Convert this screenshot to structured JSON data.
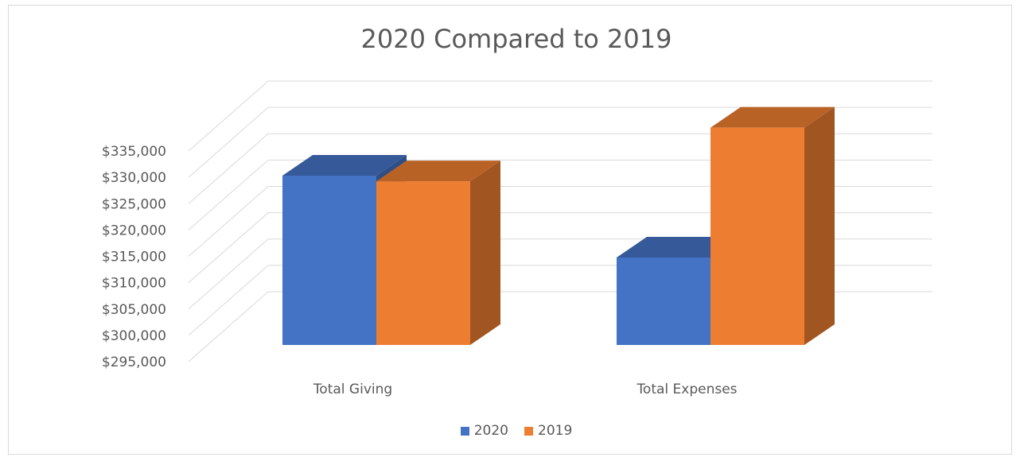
{
  "chart_data": {
    "type": "bar",
    "title": "2020 Compared to 2019",
    "categories": [
      "Total Giving",
      "Total Expenses"
    ],
    "series": [
      {
        "name": "2020",
        "values": [
          325000,
          310500
        ],
        "color": "#4472c4"
      },
      {
        "name": "2019",
        "values": [
          324000,
          333500
        ],
        "color": "#ed7d31"
      }
    ],
    "ylim": [
      295000,
      335000
    ],
    "yticks": [
      "$295,000",
      "$300,000",
      "$305,000",
      "$310,000",
      "$315,000",
      "$320,000",
      "$325,000",
      "$330,000",
      "$335,000"
    ],
    "grid": true,
    "legend_position": "bottom",
    "style": "3d-clustered-column"
  }
}
